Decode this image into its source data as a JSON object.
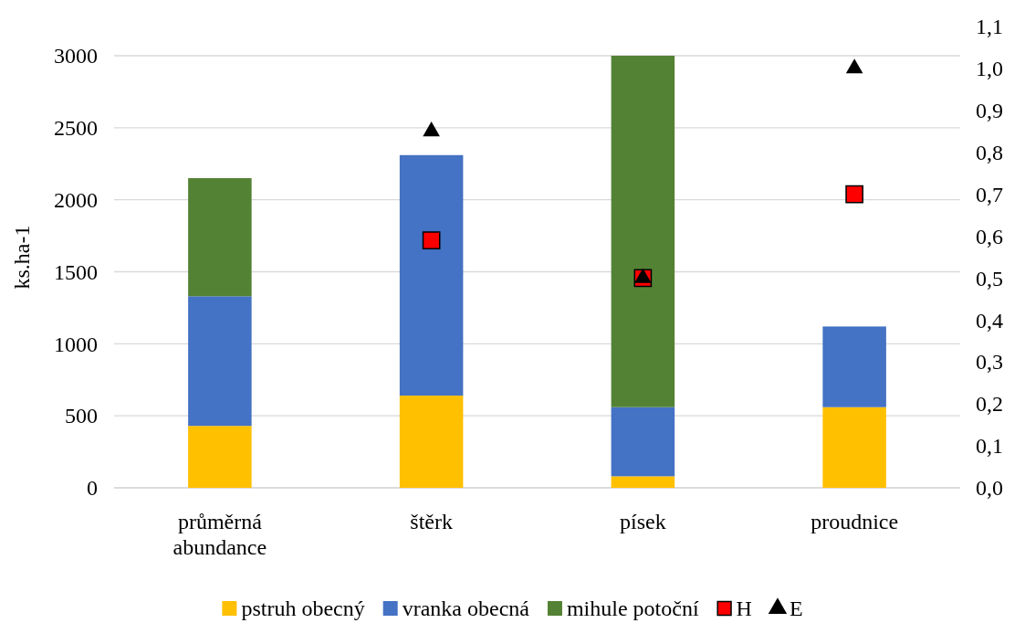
{
  "chart_data": {
    "type": "bar",
    "stacked": true,
    "ylabel": "ks.ha-1",
    "categories": [
      "průměrná abundance",
      "štěrk",
      "písek",
      "proudnice"
    ],
    "series": [
      {
        "name": "pstruh obecný",
        "color": "#ffc000",
        "values": [
          430,
          640,
          80,
          560
        ]
      },
      {
        "name": "vranka obecná",
        "color": "#4472c4",
        "values": [
          900,
          1670,
          480,
          560
        ]
      },
      {
        "name": "mihule potoční",
        "color": "#548235",
        "values": [
          820,
          null,
          2440,
          null
        ]
      },
      {
        "name": "H",
        "type": "scatter",
        "axis": "y2",
        "marker": "square",
        "color": "#ff0000",
        "values": [
          null,
          0.59,
          0.5,
          0.7
        ]
      },
      {
        "name": "E",
        "type": "scatter",
        "axis": "y2",
        "marker": "triangle",
        "color": "#000000",
        "values": [
          null,
          0.85,
          0.5,
          1.0
        ]
      }
    ],
    "ylim": [
      0,
      3000
    ],
    "yticks": [
      0,
      500,
      1000,
      1500,
      2000,
      2500,
      3000
    ],
    "y2lim": [
      0,
      1.1
    ],
    "y2ticks": [
      {
        "value": 0,
        "label": "0,0"
      },
      {
        "value": 0.1,
        "label": "0,1"
      },
      {
        "value": 0.2,
        "label": "0,2"
      },
      {
        "value": 0.3,
        "label": "0,3"
      },
      {
        "value": 0.4,
        "label": "0,4"
      },
      {
        "value": 0.5,
        "label": "0,5"
      },
      {
        "value": 0.6,
        "label": "0,6"
      },
      {
        "value": 0.7,
        "label": "0,7"
      },
      {
        "value": 0.8,
        "label": "0,8"
      },
      {
        "value": 0.9,
        "label": "0,9"
      },
      {
        "value": 1.0,
        "label": "1,0"
      },
      {
        "value": 1.1,
        "label": "1,1"
      }
    ],
    "grid": "y",
    "legend": "bottom"
  }
}
